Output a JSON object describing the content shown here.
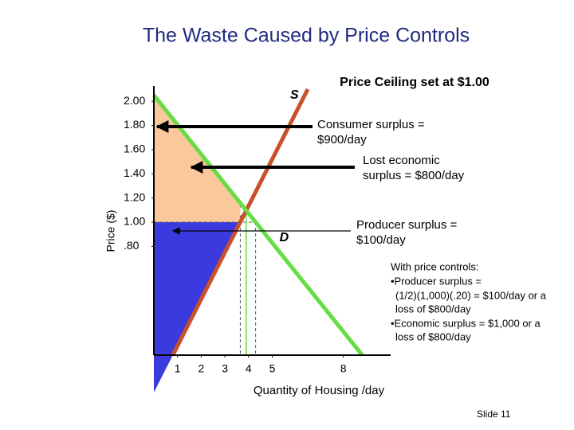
{
  "chart_data": {
    "type": "line",
    "title": "The Waste Caused by Price Controls",
    "xlabel": "Quantity of Housing /day",
    "ylabel": "Price ($)",
    "xlim": [
      0,
      10
    ],
    "ylim": [
      -0.1,
      2.1
    ],
    "xticks": [
      1,
      2,
      3,
      4,
      5,
      8
    ],
    "yticks": [
      {
        "value": 2,
        "label": "2.00"
      },
      {
        "value": 1.8,
        "label": "1.80"
      },
      {
        "value": 1.6,
        "label": "1.60"
      },
      {
        "value": 1.4,
        "label": "1.40"
      },
      {
        "value": 1.2,
        "label": "1.20"
      },
      {
        "value": 1,
        "label": "1.00"
      },
      {
        "value": 0.8,
        "label": ".80"
      }
    ],
    "ceiling": 1,
    "series": [
      {
        "name": "S",
        "color": "#c8502a",
        "x": [
          0.8,
          6.5
        ],
        "values": [
          -0.1,
          2.1
        ]
      },
      {
        "name": "D",
        "color": "#66dd44",
        "x": [
          0,
          8.8
        ],
        "values": [
          2.05,
          -0.1
        ]
      }
    ],
    "annotations": {
      "ceiling": "Price Ceiling set at $1.00",
      "consumer": [
        "Consumer surplus =",
        "$900/day"
      ],
      "lost": [
        "Lost economic",
        "surplus  = $800/day"
      ],
      "producer": [
        "Producer surplus =",
        "$100/day"
      ],
      "controls": [
        "With price controls:",
        "•Producer surplus =",
        "(1/2)(1,000)(.20) = $100/day or a",
        "loss of $800/day",
        "•Economic surplus = $1,000 or a",
        "loss of $800/day"
      ]
    },
    "slide": "Slide 11"
  }
}
